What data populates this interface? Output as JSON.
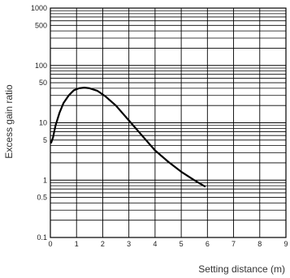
{
  "chart_data": {
    "type": "line",
    "title": "",
    "xlabel": "Setting distance (m)",
    "ylabel": "Excess gain ratio",
    "x_ticks": [
      "0",
      "1",
      "2",
      "3",
      "4",
      "5",
      "6",
      "7",
      "8",
      "9"
    ],
    "y_ticks": [
      {
        "value": 1000,
        "label": "1000"
      },
      {
        "value": 500,
        "label": "500"
      },
      {
        "value": 100,
        "label": "100"
      },
      {
        "value": 50,
        "label": "50"
      },
      {
        "value": 10,
        "label": "10"
      },
      {
        "value": 5,
        "label": "5"
      },
      {
        "value": 1,
        "label": "1"
      },
      {
        "value": 0.5,
        "label": "0.5"
      },
      {
        "value": 0.1,
        "label": "0.1"
      }
    ],
    "xlim": [
      0,
      9
    ],
    "ylim": [
      0.1,
      1000
    ],
    "yscale": "log",
    "grid": true,
    "series": [
      {
        "color": "#000000",
        "points": [
          [
            0.03,
            4.5
          ],
          [
            0.1,
            5.5
          ],
          [
            0.2,
            9
          ],
          [
            0.35,
            15
          ],
          [
            0.5,
            22
          ],
          [
            0.7,
            30
          ],
          [
            0.9,
            37
          ],
          [
            1.1,
            40
          ],
          [
            1.3,
            41
          ],
          [
            1.5,
            40
          ],
          [
            1.8,
            36
          ],
          [
            2.1,
            29
          ],
          [
            2.5,
            20
          ],
          [
            3.0,
            11
          ],
          [
            3.5,
            6
          ],
          [
            4.0,
            3.3
          ],
          [
            4.5,
            2.1
          ],
          [
            5.0,
            1.4
          ],
          [
            5.5,
            1.0
          ],
          [
            5.9,
            0.78
          ]
        ]
      }
    ]
  }
}
